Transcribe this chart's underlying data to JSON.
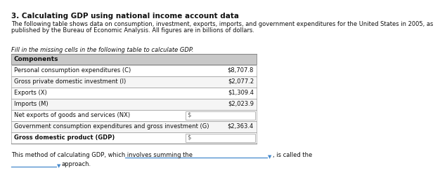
{
  "title": "3. Calculating GDP using national income account data",
  "intro_line1": "The following table shows data on consumption, investment, exports, imports, and government expenditures for the United States in 2005, as",
  "intro_line2": "published by the Bureau of Economic Analysis. All figures are in billions of dollars.",
  "instruction": "Fill in the missing cells in the following table to calculate GDP.",
  "col_header": "Components",
  "rows": [
    {
      "label": "Personal consumption expenditures (C)",
      "value": "$8,707.8",
      "editable": false,
      "bold": false
    },
    {
      "label": "Gross private domestic investment (I)",
      "value": "$2,077.2",
      "editable": false,
      "bold": false
    },
    {
      "label": "Exports (X)",
      "value": "$1,309.4",
      "editable": false,
      "bold": false
    },
    {
      "label": "Imports (M)",
      "value": "$2,023.9",
      "editable": false,
      "bold": false
    },
    {
      "label": "Net exports of goods and services (NX)",
      "value": "$",
      "editable": true,
      "bold": false
    },
    {
      "label": "Government consumption expenditures and gross investment (G)",
      "value": "$2,363.4",
      "editable": false,
      "bold": false
    },
    {
      "label": "Gross domestic product (GDP)",
      "value": "$",
      "editable": true,
      "bold": true
    }
  ],
  "footer1": "This method of calculating GDP, which involves summing the",
  "footer2": ", is called the",
  "footer3": "approach.",
  "bg_color": "#ffffff",
  "title_fontsize": 7.5,
  "body_fontsize": 6.5,
  "italic_fontsize": 6.5,
  "table_header_bg": "#c8c8c8",
  "row_bg_even": "#ffffff",
  "row_bg_odd": "#f5f5f5",
  "border_color": "#888888",
  "input_box_border": "#aaaaaa",
  "dropdown_color": "#4488cc",
  "text_color": "#111111",
  "value_color": "#111111"
}
